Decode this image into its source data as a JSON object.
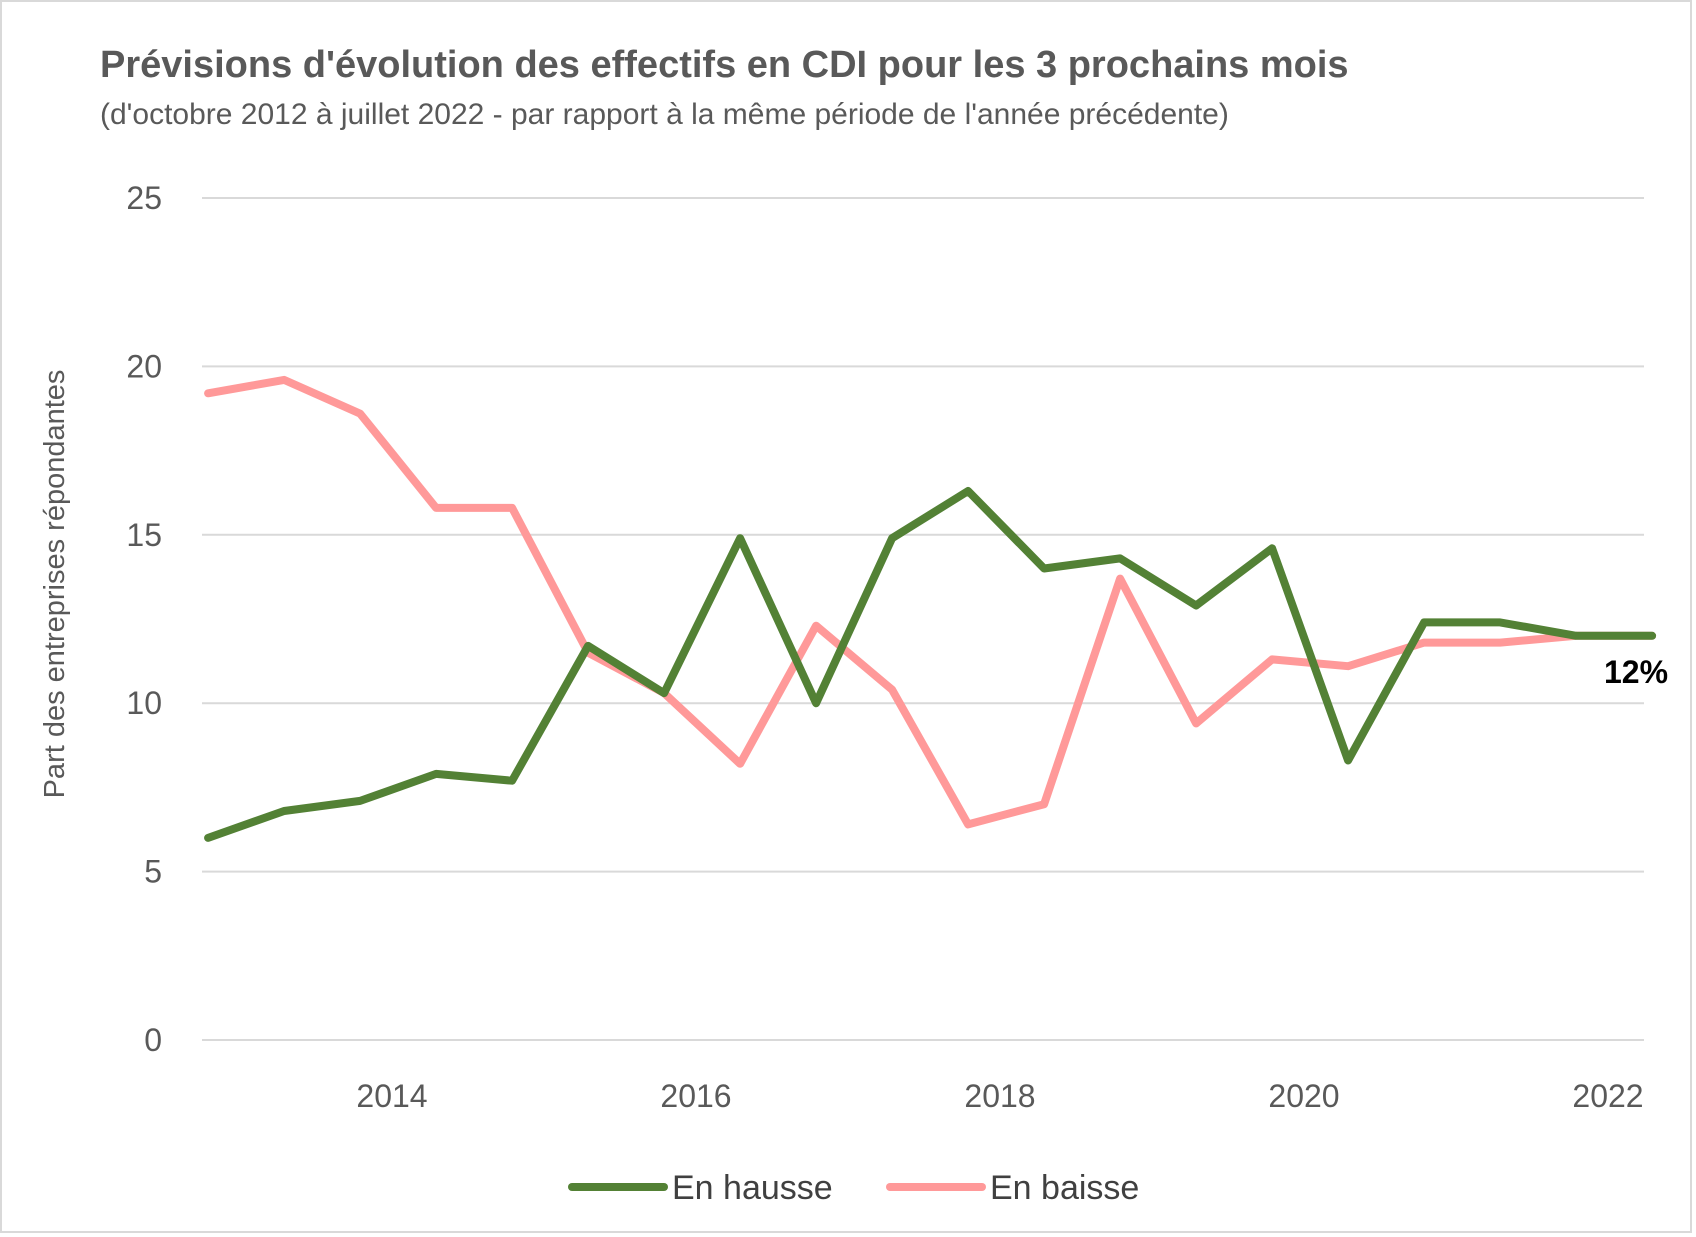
{
  "chart_data": {
    "type": "line",
    "title": "Prévisions d'évolution des effectifs en CDI pour les 3 prochains mois",
    "subtitle": "(d'octobre 2012 à juillet 2022 - par rapport à la même période de l'année précédente)",
    "ylabel": "Part des entreprises répondantes",
    "xlabel": "",
    "ylim": [
      0,
      25
    ],
    "y_ticks": [
      "0",
      "5",
      "10",
      "15",
      "20",
      "25"
    ],
    "x_tick_labels": [
      "2014",
      "2016",
      "2018",
      "2020",
      "2022"
    ],
    "x_tick_years": [
      2014,
      2016,
      2018,
      2020,
      2022
    ],
    "x": [
      "2012-10",
      "2013-04",
      "2013-10",
      "2014-04",
      "2014-10",
      "2015-04",
      "2015-10",
      "2016-04",
      "2016-10",
      "2017-04",
      "2017-10",
      "2018-04",
      "2018-10",
      "2019-04",
      "2019-10",
      "2020-04",
      "2020-10",
      "2021-04",
      "2021-10",
      "2022-04"
    ],
    "x_years": [
      2012.79,
      2013.29,
      2013.79,
      2014.29,
      2014.79,
      2015.29,
      2015.79,
      2016.29,
      2016.79,
      2017.29,
      2017.79,
      2018.29,
      2018.79,
      2019.29,
      2019.79,
      2020.29,
      2020.79,
      2021.29,
      2021.79,
      2022.29
    ],
    "grid": true,
    "legend_position": "bottom",
    "series": [
      {
        "name": "En hausse",
        "color": "#538135",
        "values": [
          6.0,
          6.8,
          7.1,
          7.9,
          7.7,
          11.7,
          10.3,
          14.9,
          10.0,
          14.9,
          16.3,
          14.0,
          14.3,
          12.9,
          14.6,
          8.3,
          12.4,
          12.4,
          12.0,
          12.0
        ]
      },
      {
        "name": "En baisse",
        "color": "#ff9999",
        "values": [
          19.2,
          19.6,
          18.6,
          15.8,
          15.8,
          11.5,
          10.3,
          8.2,
          12.3,
          10.4,
          6.4,
          7.0,
          13.7,
          9.4,
          11.3,
          11.1,
          11.8,
          11.8,
          12.0,
          12.0
        ]
      }
    ],
    "annotations": [
      {
        "text": "12%"
      }
    ]
  }
}
